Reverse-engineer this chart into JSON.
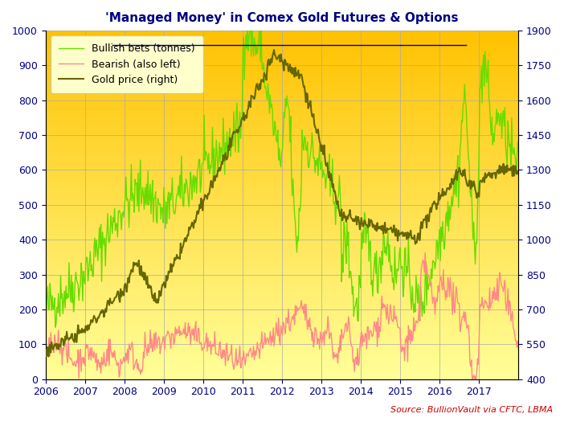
{
  "title": "'Managed Money' in Comex Gold Futures & Options",
  "source": "Source: BullionVault via CFTC, LBMA",
  "left_ylim": [
    0,
    1000
  ],
  "right_ylim": [
    400,
    1900
  ],
  "left_yticks": [
    0,
    100,
    200,
    300,
    400,
    500,
    600,
    700,
    800,
    900,
    1000
  ],
  "right_yticks": [
    400,
    550,
    700,
    850,
    1000,
    1150,
    1300,
    1450,
    1600,
    1750,
    1900
  ],
  "xstart": 2006.0,
  "xend": 2018.0,
  "xticks": [
    2006,
    2007,
    2008,
    2009,
    2010,
    2011,
    2012,
    2013,
    2014,
    2015,
    2016,
    2017
  ],
  "bg_color_top": "#FFC200",
  "bg_color_bottom": "#FFFF99",
  "legend_bg": "#FFFFCC",
  "bullish_color": "#66DD00",
  "bearish_color": "#FF8888",
  "gold_color": "#666600",
  "title_color": "#000080",
  "source_color": "#CC0000",
  "grid_color": "#AAAAAA",
  "tick_label_color": "#000080"
}
